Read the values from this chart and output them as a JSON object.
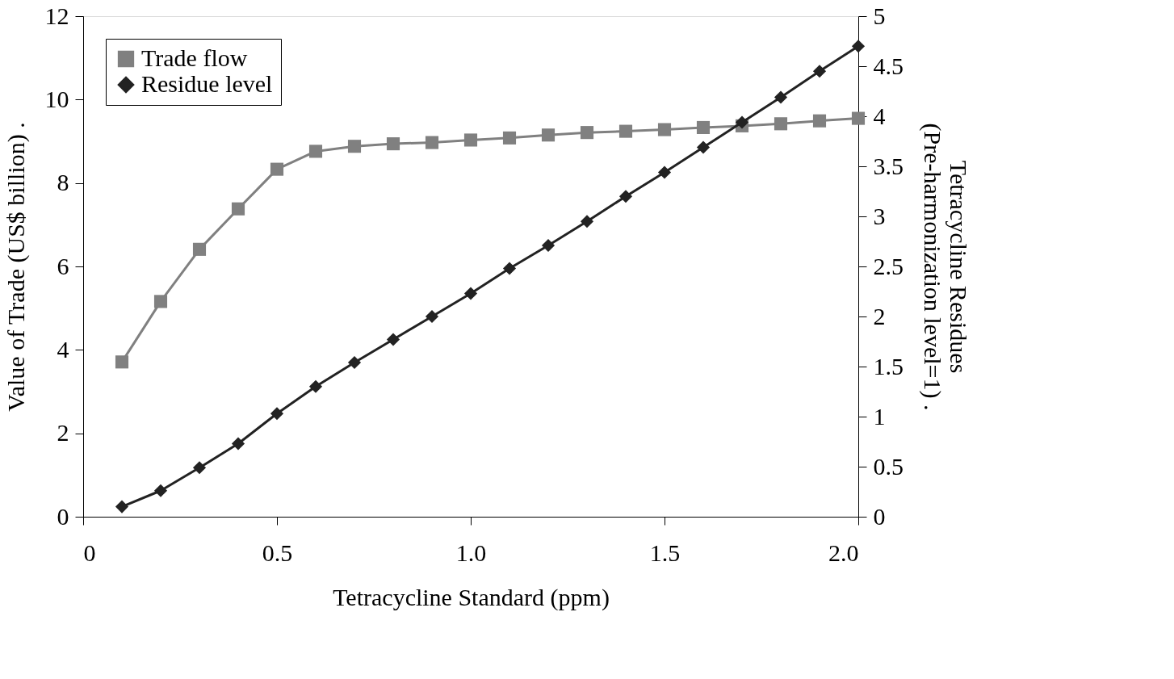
{
  "chart_data": {
    "type": "line",
    "xlabel": "Tetracycline Standard (ppm)",
    "ylabel": "Value of Trade (US$ billion) .",
    "y2label": "Tetracycline Residues\n(Pre-harmonization level=1) .",
    "x": [
      0.1,
      0.2,
      0.3,
      0.4,
      0.5,
      0.6,
      0.7,
      0.8,
      0.9,
      1.0,
      1.1,
      1.2,
      1.3,
      1.4,
      1.5,
      1.6,
      1.7,
      1.8,
      1.9,
      2.0
    ],
    "series": [
      {
        "name": "Trade flow",
        "color": "#808080",
        "marker": "square",
        "values": [
          3.71,
          5.16,
          6.41,
          7.38,
          8.33,
          8.76,
          8.88,
          8.94,
          8.97,
          9.03,
          9.08,
          9.15,
          9.21,
          9.24,
          9.28,
          9.33,
          9.37,
          9.42,
          9.49,
          9.55
        ]
      },
      {
        "name": "Residue level",
        "color": "#222222",
        "marker": "diamond",
        "axis": "y2",
        "values": [
          0.1,
          0.26,
          0.49,
          0.73,
          1.03,
          1.3,
          1.54,
          1.77,
          2.0,
          2.23,
          2.48,
          2.71,
          2.95,
          3.2,
          3.44,
          3.69,
          3.94,
          4.19,
          4.45,
          4.7
        ]
      }
    ],
    "xlim": [
      0,
      2.0
    ],
    "xticks": [
      0,
      0.5,
      {
        "value": 1.0,
        "label": "1.0"
      },
      1.5,
      {
        "value": 2.0,
        "label": "2.0"
      }
    ],
    "ylim": [
      0,
      12
    ],
    "yticks": [
      0,
      2,
      4,
      6,
      8,
      10,
      12
    ],
    "y2lim": [
      0,
      5
    ],
    "y2ticks": [
      0,
      0.5,
      1,
      1.5,
      2,
      2.5,
      3,
      3.5,
      4,
      4.5,
      5
    ],
    "grid": false,
    "legend": "top left",
    "line_style": "solid"
  }
}
